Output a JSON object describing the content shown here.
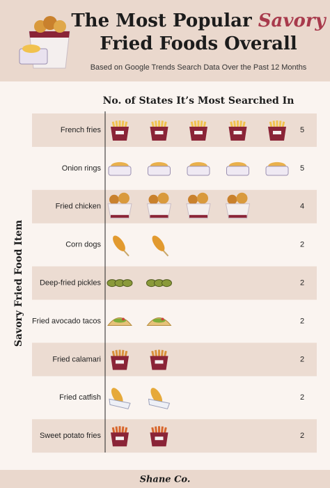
{
  "chart_data": {
    "type": "pictogram",
    "title_lead": "The Most Popular",
    "title_highlight": "Savory",
    "title_rest": "Fried Foods Overall",
    "subtitle": "Based on Google Trends Search Data Over the Past 12 Months",
    "x_label": "No. of States It’s Most Searched In",
    "y_label": "Savory Fried Food Item",
    "categories": [
      "French fries",
      "Onion rings",
      "Fried chicken",
      "Corn dogs",
      "Deep-fried pickles",
      "Fried avocado tacos",
      "Fried calamari",
      "Fried catfish",
      "Sweet potato fries"
    ],
    "values": [
      5,
      5,
      4,
      2,
      2,
      2,
      2,
      2,
      2
    ],
    "brand": "Shane Co."
  }
}
